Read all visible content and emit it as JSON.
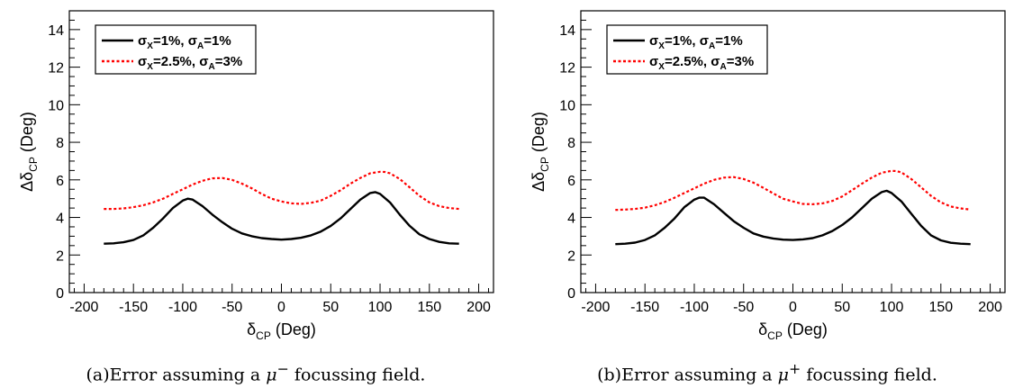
{
  "chart_data": [
    {
      "type": "line",
      "xlabel": "δCP (Deg)",
      "ylabel": "ΔδCP (Deg)",
      "xlim": [
        -215,
        215
      ],
      "ylim": [
        0,
        15
      ],
      "xticks": [
        -200,
        -150,
        -100,
        -50,
        0,
        50,
        100,
        150,
        200
      ],
      "yticks": [
        0,
        2,
        4,
        6,
        8,
        10,
        12,
        14
      ],
      "grid": false,
      "legend": "top-left",
      "series": [
        {
          "name": "σX=1%, σA=1%",
          "color": "#000000",
          "dash": "solid",
          "x": [
            -180,
            -170,
            -160,
            -150,
            -140,
            -130,
            -120,
            -110,
            -100,
            -95,
            -90,
            -80,
            -70,
            -60,
            -50,
            -40,
            -30,
            -20,
            -10,
            0,
            10,
            20,
            30,
            40,
            50,
            60,
            70,
            80,
            90,
            95,
            100,
            110,
            120,
            130,
            140,
            150,
            160,
            170,
            180
          ],
          "y": [
            2.6,
            2.62,
            2.68,
            2.8,
            3.05,
            3.45,
            3.95,
            4.5,
            4.9,
            5.0,
            4.95,
            4.6,
            4.15,
            3.75,
            3.4,
            3.15,
            3.0,
            2.9,
            2.85,
            2.82,
            2.85,
            2.92,
            3.05,
            3.25,
            3.55,
            3.95,
            4.45,
            4.95,
            5.3,
            5.35,
            5.25,
            4.8,
            4.15,
            3.55,
            3.1,
            2.85,
            2.7,
            2.62,
            2.6
          ]
        },
        {
          "name": "σX=2.5%, σA=3%",
          "color": "#ff0000",
          "dash": "dotted",
          "x": [
            -180,
            -170,
            -160,
            -150,
            -140,
            -130,
            -120,
            -110,
            -100,
            -90,
            -80,
            -70,
            -60,
            -50,
            -40,
            -30,
            -20,
            -10,
            0,
            10,
            20,
            30,
            40,
            50,
            60,
            70,
            80,
            90,
            100,
            105,
            110,
            120,
            130,
            140,
            150,
            160,
            170,
            180
          ],
          "y": [
            4.45,
            4.45,
            4.48,
            4.55,
            4.65,
            4.8,
            5.0,
            5.25,
            5.5,
            5.75,
            5.95,
            6.08,
            6.1,
            6.0,
            5.8,
            5.55,
            5.25,
            5.0,
            4.85,
            4.75,
            4.72,
            4.78,
            4.9,
            5.15,
            5.45,
            5.8,
            6.1,
            6.35,
            6.43,
            6.42,
            6.35,
            6.05,
            5.6,
            5.15,
            4.8,
            4.6,
            4.5,
            4.45
          ]
        }
      ],
      "caption": {
        "label": "(a)Error assuming a",
        "symbol": "μ",
        "sup": "−",
        "rest": " focussing field."
      }
    },
    {
      "type": "line",
      "xlabel": "δCP (Deg)",
      "ylabel": "ΔδCP (Deg)",
      "xlim": [
        -215,
        215
      ],
      "ylim": [
        0,
        15
      ],
      "xticks": [
        -200,
        -150,
        -100,
        -50,
        0,
        50,
        100,
        150,
        200
      ],
      "yticks": [
        0,
        2,
        4,
        6,
        8,
        10,
        12,
        14
      ],
      "grid": false,
      "legend": "top-left",
      "series": [
        {
          "name": "σX=1%, σA=1%",
          "color": "#000000",
          "dash": "solid",
          "x": [
            -180,
            -170,
            -160,
            -150,
            -140,
            -130,
            -120,
            -110,
            -100,
            -95,
            -90,
            -80,
            -70,
            -60,
            -50,
            -40,
            -30,
            -20,
            -10,
            0,
            10,
            20,
            30,
            40,
            50,
            60,
            70,
            80,
            90,
            95,
            100,
            110,
            120,
            130,
            140,
            150,
            160,
            170,
            180
          ],
          "y": [
            2.58,
            2.6,
            2.66,
            2.8,
            3.05,
            3.45,
            3.95,
            4.55,
            4.95,
            5.05,
            5.05,
            4.7,
            4.25,
            3.8,
            3.45,
            3.15,
            2.98,
            2.88,
            2.82,
            2.8,
            2.83,
            2.9,
            3.05,
            3.28,
            3.6,
            4.0,
            4.5,
            5.0,
            5.35,
            5.42,
            5.3,
            4.85,
            4.2,
            3.55,
            3.05,
            2.78,
            2.65,
            2.6,
            2.58
          ]
        },
        {
          "name": "σX=2.5%, σA=3%",
          "color": "#ff0000",
          "dash": "dotted",
          "x": [
            -180,
            -170,
            -160,
            -150,
            -140,
            -130,
            -120,
            -110,
            -100,
            -90,
            -80,
            -70,
            -60,
            -50,
            -40,
            -30,
            -20,
            -10,
            0,
            10,
            20,
            30,
            40,
            50,
            60,
            70,
            80,
            90,
            100,
            105,
            110,
            120,
            130,
            140,
            150,
            160,
            170,
            180
          ],
          "y": [
            4.4,
            4.42,
            4.45,
            4.52,
            4.65,
            4.82,
            5.05,
            5.3,
            5.55,
            5.8,
            6.0,
            6.12,
            6.15,
            6.05,
            5.85,
            5.58,
            5.28,
            5.0,
            4.85,
            4.72,
            4.7,
            4.75,
            4.88,
            5.12,
            5.45,
            5.8,
            6.12,
            6.38,
            6.48,
            6.47,
            6.4,
            6.05,
            5.6,
            5.15,
            4.8,
            4.58,
            4.48,
            4.42
          ]
        }
      ],
      "caption": {
        "label": "(b)Error assuming a",
        "symbol": "μ",
        "sup": "+",
        "rest": " focussing field."
      }
    }
  ]
}
